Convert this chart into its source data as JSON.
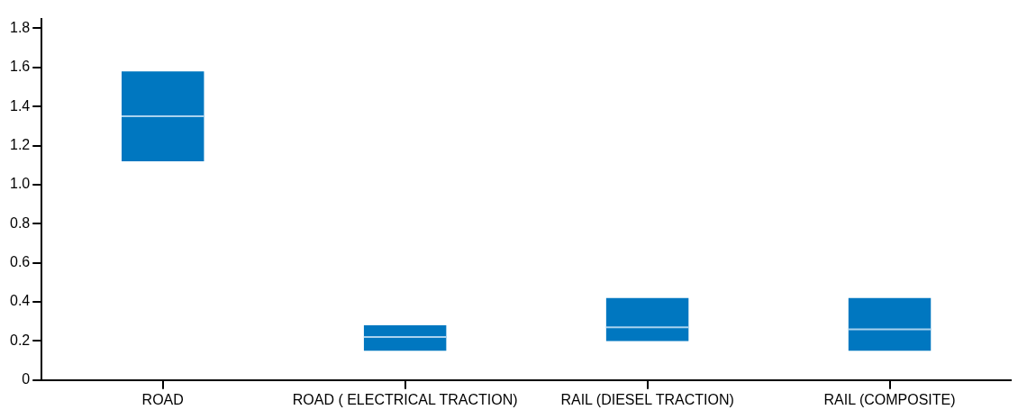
{
  "chart_data": {
    "type": "box",
    "categories": [
      "ROAD",
      "ROAD ( ELECTRICAL TRACTION)",
      "RAIL (DIESEL TRACTION)",
      "RAIL (COMPOSITE)"
    ],
    "boxes": [
      {
        "low": 1.12,
        "q1": 1.12,
        "median": 1.35,
        "q3": 1.58,
        "high": 1.58
      },
      {
        "low": 0.15,
        "q1": 0.15,
        "median": 0.22,
        "q3": 0.28,
        "high": 0.28
      },
      {
        "low": 0.2,
        "q1": 0.2,
        "median": 0.27,
        "q3": 0.42,
        "high": 0.42
      },
      {
        "low": 0.15,
        "q1": 0.15,
        "median": 0.26,
        "q3": 0.42,
        "high": 0.42
      }
    ],
    "color": "#0077c0",
    "ylim": [
      0,
      1.85
    ],
    "yticks": [
      0,
      0.2,
      0.4,
      0.6,
      0.8,
      {
        "value": 1,
        "label": "1.0"
      },
      1.2,
      1.4,
      1.6,
      1.8
    ],
    "grid": false,
    "legend": false
  }
}
